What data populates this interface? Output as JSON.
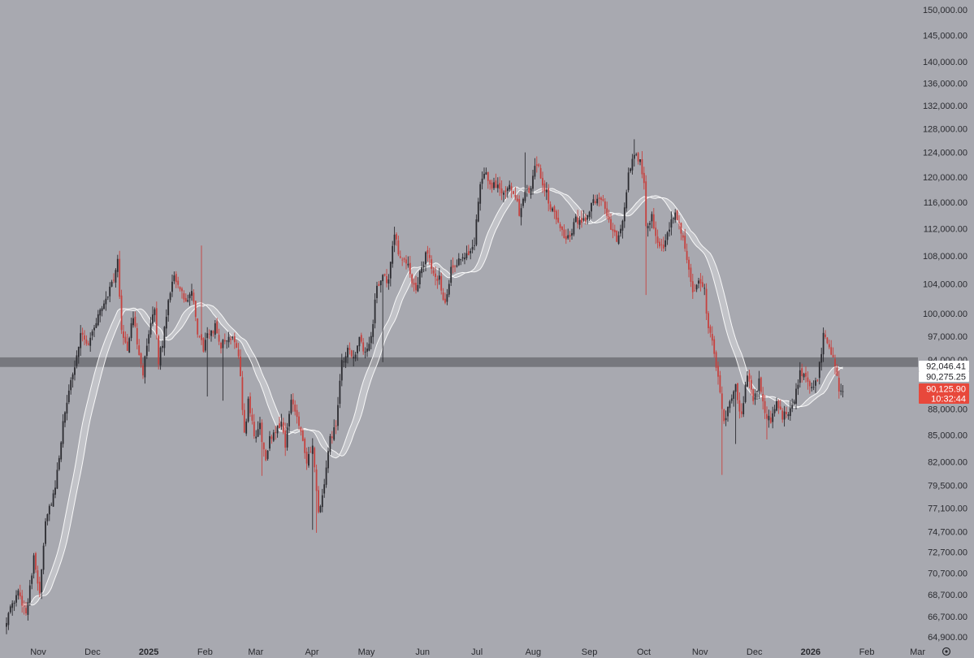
{
  "colors": {
    "background": "#a8a9b0",
    "up_candle": "#2b2b30",
    "down_candle": "#c6423f",
    "ma_band": "#ffffff",
    "zone": "#6f7075",
    "badge_white_bg": "#ffffff",
    "badge_red_bg": "#e8483b"
  },
  "chart_data": {
    "type": "candlestick",
    "price_scale": "log",
    "ylim": [
      63800,
      152000
    ],
    "y_ticks": [
      "150,000.00",
      "145,000.00",
      "140,000.00",
      "136,000.00",
      "132,000.00",
      "128,000.00",
      "124,000.00",
      "120,000.00",
      "116,000.00",
      "112,000.00",
      "108,000.00",
      "104,000.00",
      "100,000.00",
      "97,000.00",
      "94,000.00",
      "88,000.00",
      "85,000.00",
      "82,000.00",
      "79,500.00",
      "77,100.00",
      "74,700.00",
      "72,700.00",
      "70,700.00",
      "68,700.00",
      "66,700.00",
      "64,900.00"
    ],
    "x_labels": [
      {
        "text": "Nov",
        "bold": false
      },
      {
        "text": "Dec",
        "bold": false
      },
      {
        "text": "2025",
        "bold": true
      },
      {
        "text": "Feb",
        "bold": false
      },
      {
        "text": "Mar",
        "bold": false
      },
      {
        "text": "Apr",
        "bold": false
      },
      {
        "text": "May",
        "bold": false
      },
      {
        "text": "Jun",
        "bold": false
      },
      {
        "text": "Jul",
        "bold": false
      },
      {
        "text": "Aug",
        "bold": false
      },
      {
        "text": "Sep",
        "bold": false
      },
      {
        "text": "Oct",
        "bold": false
      },
      {
        "text": "Nov",
        "bold": false
      },
      {
        "text": "Dec",
        "bold": false
      },
      {
        "text": "2026",
        "bold": true
      },
      {
        "text": "Feb",
        "bold": false
      },
      {
        "text": "Mar",
        "bold": false
      }
    ],
    "price_path": [
      [
        0,
        66500
      ],
      [
        6,
        68800
      ],
      [
        10,
        67200
      ],
      [
        14,
        72000
      ],
      [
        17,
        69000
      ],
      [
        20,
        76000
      ],
      [
        25,
        79000
      ],
      [
        30,
        88000
      ],
      [
        34,
        92000
      ],
      [
        38,
        97500
      ],
      [
        42,
        96000
      ],
      [
        46,
        99000
      ],
      [
        50,
        101500
      ],
      [
        54,
        104000
      ],
      [
        57,
        107000
      ],
      [
        59,
        98000
      ],
      [
        62,
        95500
      ],
      [
        65,
        99500
      ],
      [
        68,
        95000
      ],
      [
        70,
        92500
      ],
      [
        73,
        97000
      ],
      [
        76,
        100500
      ],
      [
        78,
        94000
      ],
      [
        80,
        96000
      ],
      [
        83,
        102000
      ],
      [
        86,
        105500
      ],
      [
        89,
        103000
      ],
      [
        92,
        101500
      ],
      [
        95,
        102800
      ],
      [
        98,
        97500
      ],
      [
        101,
        95500
      ],
      [
        104,
        97500
      ],
      [
        107,
        98200
      ],
      [
        110,
        95800
      ],
      [
        113,
        96500
      ],
      [
        116,
        97200
      ],
      [
        119,
        95000
      ],
      [
        122,
        85000
      ],
      [
        124,
        89000
      ],
      [
        127,
        84800
      ],
      [
        130,
        86000
      ],
      [
        133,
        82000
      ],
      [
        135,
        84500
      ],
      [
        138,
        85600
      ],
      [
        141,
        86500
      ],
      [
        143,
        84000
      ],
      [
        146,
        89000
      ],
      [
        149,
        87500
      ],
      [
        152,
        84500
      ],
      [
        154,
        82000
      ],
      [
        157,
        83500
      ],
      [
        160,
        76500
      ],
      [
        163,
        79500
      ],
      [
        166,
        84500
      ],
      [
        169,
        86000
      ],
      [
        172,
        93500
      ],
      [
        175,
        95000
      ],
      [
        178,
        94500
      ],
      [
        181,
        96500
      ],
      [
        184,
        94500
      ],
      [
        187,
        97000
      ],
      [
        190,
        103500
      ],
      [
        193,
        105500
      ],
      [
        196,
        104200
      ],
      [
        199,
        111500
      ],
      [
        201,
        108200
      ],
      [
        204,
        107700
      ],
      [
        207,
        105500
      ],
      [
        210,
        103000
      ],
      [
        213,
        106500
      ],
      [
        216,
        108800
      ],
      [
        219,
        105000
      ],
      [
        222,
        104800
      ],
      [
        225,
        101000
      ],
      [
        228,
        105800
      ],
      [
        231,
        106800
      ],
      [
        234,
        107500
      ],
      [
        237,
        108300
      ],
      [
        240,
        110000
      ],
      [
        243,
        119500
      ],
      [
        246,
        120200
      ],
      [
        249,
        118500
      ],
      [
        252,
        119000
      ],
      [
        255,
        117500
      ],
      [
        258,
        119000
      ],
      [
        261,
        117000
      ],
      [
        263,
        114200
      ],
      [
        266,
        117000
      ],
      [
        269,
        118500
      ],
      [
        272,
        122500
      ],
      [
        274,
        120000
      ],
      [
        277,
        117500
      ],
      [
        280,
        114500
      ],
      [
        283,
        113500
      ],
      [
        286,
        111000
      ],
      [
        289,
        110800
      ],
      [
        292,
        113200
      ],
      [
        295,
        112500
      ],
      [
        298,
        114200
      ],
      [
        301,
        115800
      ],
      [
        304,
        117000
      ],
      [
        307,
        115500
      ],
      [
        310,
        112000
      ],
      [
        313,
        110200
      ],
      [
        316,
        113000
      ],
      [
        319,
        120000
      ],
      [
        322,
        124000
      ],
      [
        325,
        122200
      ],
      [
        327,
        119500
      ],
      [
        328,
        112500
      ],
      [
        331,
        114000
      ],
      [
        334,
        110200
      ],
      [
        337,
        108500
      ],
      [
        340,
        112000
      ],
      [
        343,
        115000
      ],
      [
        346,
        111800
      ],
      [
        349,
        107000
      ],
      [
        352,
        103000
      ],
      [
        355,
        104000
      ],
      [
        358,
        103000
      ],
      [
        360,
        98000
      ],
      [
        363,
        95000
      ],
      [
        365,
        91500
      ],
      [
        368,
        86500
      ],
      [
        371,
        88500
      ],
      [
        374,
        90500
      ],
      [
        377,
        87000
      ],
      [
        380,
        92500
      ],
      [
        383,
        89000
      ],
      [
        386,
        91500
      ],
      [
        389,
        87500
      ],
      [
        392,
        86500
      ],
      [
        395,
        88500
      ],
      [
        398,
        87300
      ],
      [
        401,
        87800
      ],
      [
        404,
        88500
      ],
      [
        407,
        92800
      ],
      [
        410,
        91800
      ],
      [
        413,
        90500
      ],
      [
        416,
        91500
      ],
      [
        419,
        97200
      ],
      [
        422,
        96000
      ],
      [
        425,
        93500
      ],
      [
        427,
        90200
      ],
      [
        429,
        90125.9
      ]
    ],
    "wick_spikes": [
      {
        "day": 58,
        "high": 108500
      },
      {
        "day": 100,
        "high": 109500
      },
      {
        "day": 103,
        "low": 89500
      },
      {
        "day": 111,
        "low": 89000
      },
      {
        "day": 131,
        "low": 80500
      },
      {
        "day": 157,
        "low": 74900
      },
      {
        "day": 159,
        "low": 74600
      },
      {
        "day": 193,
        "low": 93700
      },
      {
        "day": 266,
        "high": 124000
      },
      {
        "day": 322,
        "high": 126200
      },
      {
        "day": 328,
        "low": 102500
      },
      {
        "day": 367,
        "low": 80600
      },
      {
        "day": 374,
        "low": 84000
      },
      {
        "day": 390,
        "low": 84500
      }
    ],
    "resistance_zone": [
      93100,
      94300
    ],
    "price_badges": [
      {
        "label": "92,046.41",
        "value": 92046.41,
        "style": "white"
      },
      {
        "label": "90,275.25",
        "value": 90275.25,
        "style": "white"
      },
      {
        "label": "90,125.90",
        "value": 90125.9,
        "style": "red"
      },
      {
        "label": "10:32:44",
        "value": 88500,
        "style": "red"
      }
    ]
  }
}
